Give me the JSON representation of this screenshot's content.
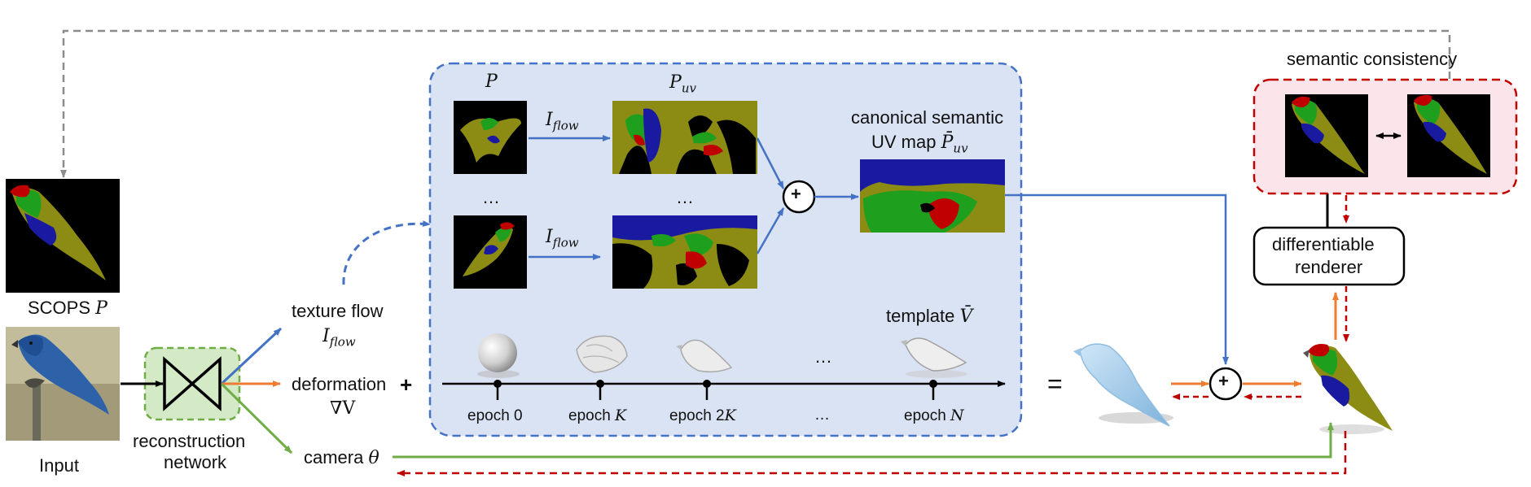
{
  "labels": {
    "scops": "SCOPS ",
    "scops_var": "P",
    "input": "Input",
    "recon_line1": "reconstruction",
    "recon_line2": "network",
    "texture_flow": "texture flow",
    "texture_flow_var": "I",
    "texture_flow_sub": "flow",
    "deformation": "deformation",
    "deformation_var": "∇V",
    "camera": "camera ",
    "camera_var": "θ",
    "p_head": "P",
    "puv_head": "P",
    "puv_sub": "uv",
    "iflow_var": "I",
    "iflow_sub": "flow",
    "dots": "…",
    "canonical_line1": "canonical semantic",
    "canonical_line2": "UV map ",
    "canonical_var": "P̄",
    "canonical_sub": "uv",
    "template": "template ",
    "template_var": "V̄",
    "equals": "=",
    "plus": "+",
    "semantic_consistency": "semantic consistency",
    "diff_line1": "differentiable",
    "diff_line2": "renderer"
  },
  "epochs": [
    {
      "text": "epoch 0",
      "var": ""
    },
    {
      "text": "epoch ",
      "var": "K"
    },
    {
      "text": "epoch 2",
      "var": "K"
    },
    {
      "text": "…",
      "var": ""
    },
    {
      "text": "epoch ",
      "var": "N"
    }
  ],
  "colors": {
    "blue_arrow": "#4472c4",
    "orange_arrow": "#ed7d31",
    "green_arrow": "#70ad47",
    "red_dashed": "#c00000",
    "gray_dashed": "#8c8c8c",
    "panel_fill": "#dae3f3",
    "panel_border": "#4472c4",
    "recon_fill": "#d4e9c6",
    "recon_border": "#70ad47",
    "consistency_fill": "#fbe5ea",
    "consistency_border": "#c00000",
    "seg_olive": "#8c8c14",
    "seg_green": "#1ea01e",
    "seg_blue": "#1a1aa0",
    "seg_red": "#c00000"
  }
}
